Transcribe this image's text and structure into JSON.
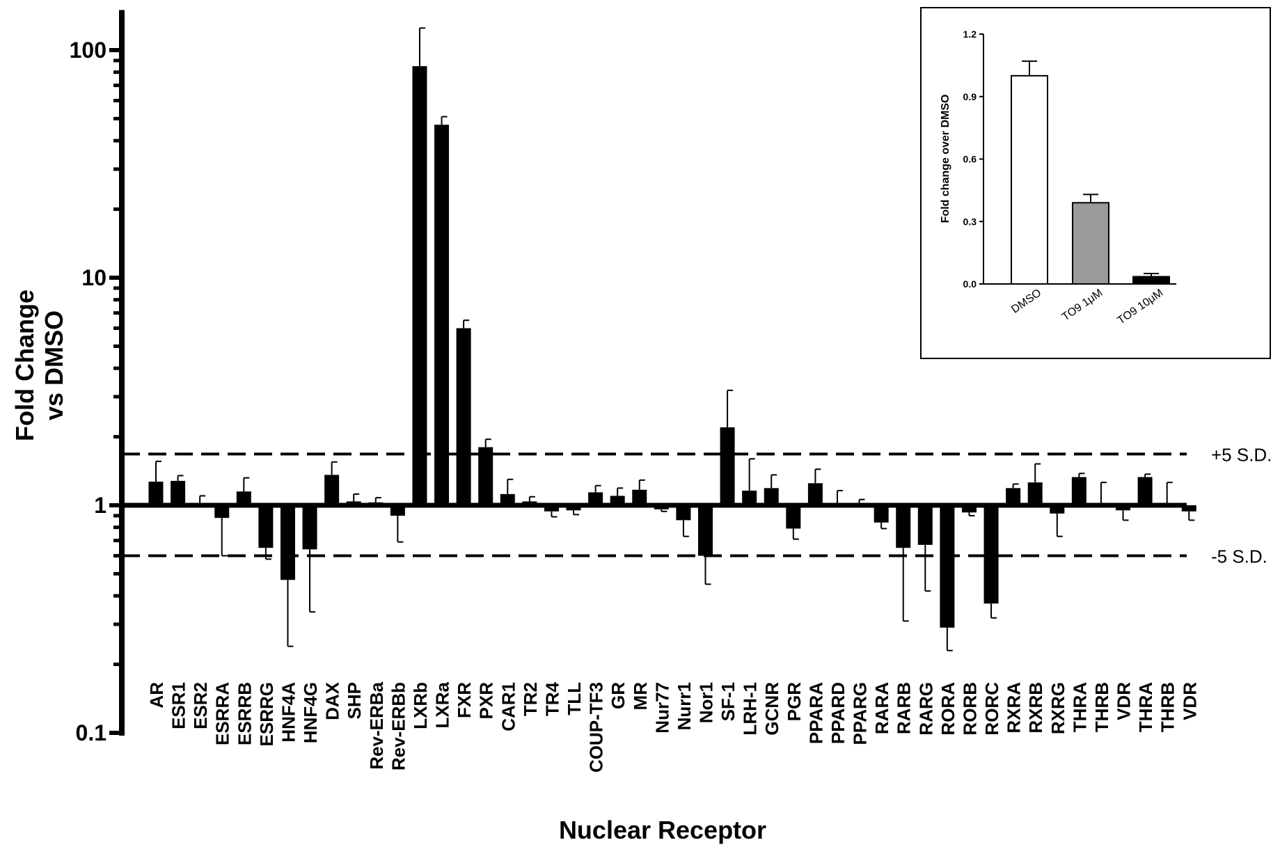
{
  "chart_data": [
    {
      "type": "bar",
      "xlabel": "Nuclear Receptor",
      "ylabel": [
        "Fold Change",
        "vs DMSO"
      ],
      "yscale": "log",
      "ylim": [
        0.1,
        150
      ],
      "yticks": [
        "0.1",
        "1",
        "10",
        "100"
      ],
      "baseline": 1,
      "grid": false,
      "reference_lines": [
        {
          "label": "+5 S.D.",
          "value": 1.68
        },
        {
          "label": "-5 S.D.",
          "value": 0.6
        }
      ],
      "categories": [
        "AR",
        "ESR1",
        "ESR2",
        "ESRRA",
        "ESRRB",
        "ESRRG",
        "HNF4A",
        "HNF4G",
        "DAX",
        "SHP",
        "Rev-ERBa",
        "Rev-ERBb",
        "LXRb",
        "LXRa",
        "FXR",
        "PXR",
        "CAR1",
        "TR2",
        "TR4",
        "TLL",
        "COUP-TF3",
        "GR",
        "MR",
        "Nur77",
        "Nurr1",
        "Nor1",
        "SF-1",
        "LRH-1",
        "GCNR",
        "PGR",
        "PPARA",
        "PPARD",
        "PPARG",
        "RARA",
        "RARB",
        "RARG",
        "RORA",
        "RORB",
        "RORC",
        "RXRA",
        "RXRB",
        "RXRG",
        "THRA",
        "THRB",
        "VDR",
        "THRA",
        "THRB",
        "VDR"
      ],
      "values": [
        1.27,
        1.28,
        1.0,
        0.88,
        1.15,
        0.65,
        0.47,
        0.64,
        1.36,
        1.04,
        1.03,
        0.9,
        85,
        47,
        6.0,
        1.8,
        1.12,
        1.04,
        0.94,
        0.95,
        1.14,
        1.1,
        1.17,
        0.96,
        0.86,
        0.6,
        2.2,
        1.16,
        1.19,
        0.79,
        1.25,
        1.0,
        1.0,
        0.84,
        0.65,
        0.67,
        0.29,
        0.93,
        0.37,
        1.19,
        1.26,
        0.92,
        1.33,
        1.0,
        0.95,
        1.33,
        1.0,
        0.94
      ],
      "errors": [
        1.56,
        1.35,
        1.1,
        0.6,
        1.32,
        0.58,
        0.24,
        0.34,
        1.55,
        1.12,
        1.08,
        0.69,
        125,
        51,
        6.5,
        1.95,
        1.3,
        1.09,
        0.89,
        0.91,
        1.22,
        1.19,
        1.29,
        0.94,
        0.73,
        0.45,
        3.2,
        1.6,
        1.36,
        0.71,
        1.44,
        1.16,
        1.06,
        0.79,
        0.31,
        0.42,
        0.23,
        0.9,
        0.32,
        1.24,
        1.52,
        0.73,
        1.38,
        1.26,
        0.86,
        1.37,
        1.26,
        0.86
      ],
      "color": "#000000"
    },
    {
      "type": "bar",
      "ylabel": "Fold change over DMSO",
      "ylim": [
        0,
        1.2
      ],
      "yticks": [
        "0.0",
        "0.3",
        "0.6",
        "0.9",
        "1.2"
      ],
      "categories": [
        "DMSO",
        "TO9 1μM",
        "TO9 10μM"
      ],
      "values": [
        1.0,
        0.39,
        0.035
      ],
      "errors": [
        1.07,
        0.43,
        0.05
      ],
      "colors": [
        "#ffffff",
        "#9a9a9a",
        "#000000"
      ]
    }
  ]
}
